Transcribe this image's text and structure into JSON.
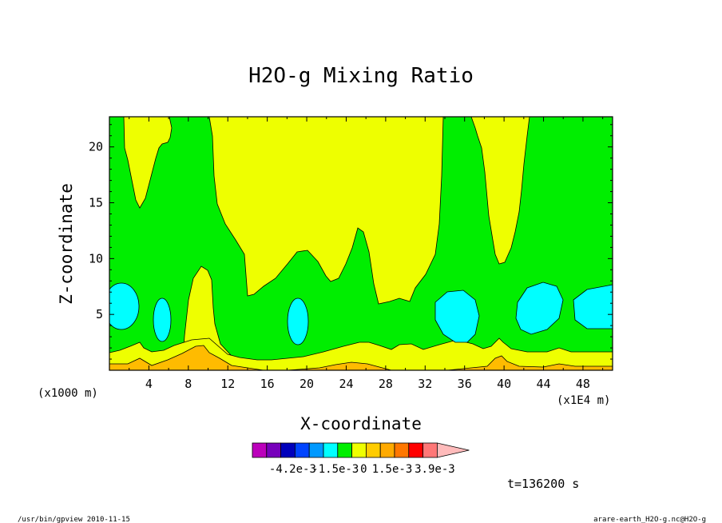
{
  "chart_data": {
    "type": "heatmap",
    "title": "H2O-g Mixing Ratio",
    "xlabel": "X-coordinate",
    "ylabel": "Z-coordinate",
    "x_unit_label": "(x1E4 m)",
    "y_unit_label": "(x1000 m)",
    "xlim": [
      0,
      51
    ],
    "ylim": [
      0,
      22.7
    ],
    "x_ticks": [
      "4",
      "8",
      "12",
      "16",
      "20",
      "24",
      "28",
      "32",
      "36",
      "40",
      "44",
      "48"
    ],
    "y_ticks": [
      "5",
      "10",
      "15",
      "20"
    ],
    "contour_fields": [
      {
        "name": "background",
        "color": "#00ee00"
      },
      {
        "name": "upper-left-plume",
        "color": "#eeff00"
      },
      {
        "name": "central-plume",
        "color": "#eeff00"
      },
      {
        "name": "right-upper-plume",
        "color": "#eeff00"
      },
      {
        "name": "lower-left-tongue",
        "color": "#eeff00"
      },
      {
        "name": "bottom-band",
        "color": "#eeff00"
      },
      {
        "name": "orange-band",
        "color": "#ffbb00"
      },
      {
        "name": "cyan-cell-1",
        "color": "#00ffff"
      },
      {
        "name": "cyan-cell-2",
        "color": "#00ffff"
      },
      {
        "name": "cyan-cell-3",
        "color": "#00ffff"
      },
      {
        "name": "cyan-cell-4",
        "color": "#00ffff"
      },
      {
        "name": "cyan-cell-5",
        "color": "#00ffff"
      },
      {
        "name": "cyan-cell-6",
        "color": "#00ffff"
      }
    ],
    "colorbar": {
      "colors": [
        "#bb00bb",
        "#7700bb",
        "#0000bb",
        "#0044ff",
        "#0099ff",
        "#00ffff",
        "#00ee00",
        "#eeff00",
        "#ffcc00",
        "#ffaa00",
        "#ff7700",
        "#ff0000",
        "#ff7777",
        "#ffbbbb"
      ],
      "labels": [
        "-4.2e-3",
        "-1.5e-3",
        "0",
        "1.5e-3",
        "3.9e-3"
      ]
    },
    "time_label": "t=136200 s"
  },
  "footer": {
    "left": "/usr/bin/gpview  2010-11-15",
    "right": "arare-earth_H2O-g.nc@H2O-g"
  }
}
